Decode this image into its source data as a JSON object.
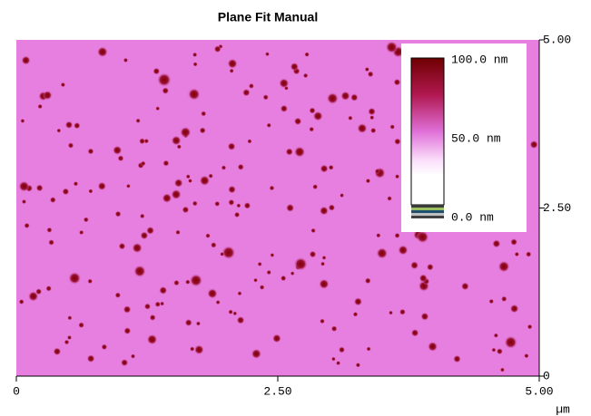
{
  "chart_data": {
    "type": "image",
    "title": "Plane Fit Manual",
    "x_unit": "µm",
    "xlim": [
      0,
      5
    ],
    "ylim": [
      0,
      5
    ],
    "xticks": [
      0,
      {
        "value": 2.5,
        "label": "2.50"
      },
      {
        "value": 5,
        "label": "5.00"
      }
    ],
    "yticks": [
      0,
      {
        "value": 2.5,
        "label": "2.50"
      },
      {
        "value": 5,
        "label": "5.00"
      }
    ],
    "zlim": [
      0,
      100
    ],
    "zticks": [
      {
        "value": 0,
        "label": "0.0 nm"
      },
      {
        "value": 50,
        "label": "50.0 nm"
      },
      {
        "value": 100,
        "label": "100.0 nm"
      }
    ]
  }
}
